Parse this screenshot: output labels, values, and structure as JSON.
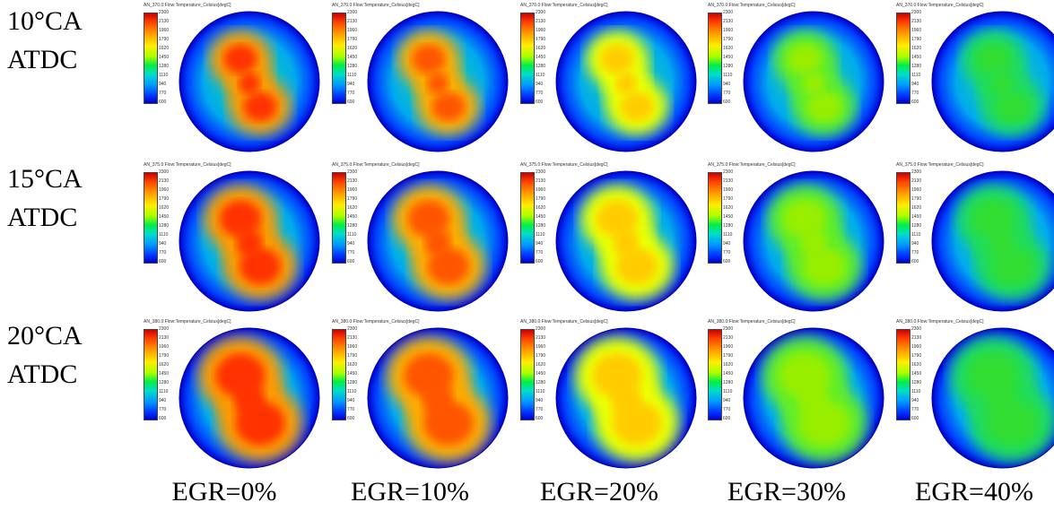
{
  "rows": [
    {
      "line1": "10°CA",
      "line2": "ATDC"
    },
    {
      "line1": "15°CA",
      "line2": "ATDC"
    },
    {
      "line1": "20°CA",
      "line2": "ATDC"
    }
  ],
  "columns": [
    "EGR=0%",
    "EGR=10%",
    "EGR=20%",
    "EGR=30%",
    "EGR=40%"
  ],
  "captions": {
    "row1": "AN_370.0:Flow:Temperature_Celsius[degC]",
    "row2": "AN_375.0:Flow:Temperature_Celsius[degC]",
    "row3": "AN_380.0:Flow:Temperature_Celsius[degC]"
  },
  "legend_ticks": [
    "2300",
    "2130",
    "1960",
    "1790",
    "1620",
    "1450",
    "1280",
    "1110",
    "940",
    "770",
    "600"
  ],
  "plot_colors": {
    "scale_max": "#cc0000",
    "scale_min": "#0000cc"
  }
}
